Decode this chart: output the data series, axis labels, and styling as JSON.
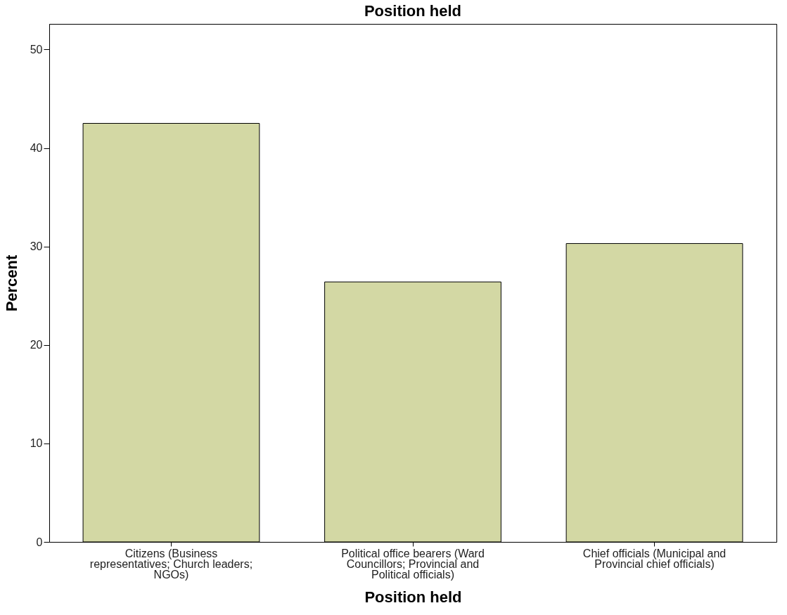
{
  "chart_data": {
    "type": "bar",
    "title": "Position held",
    "xlabel": "Position held",
    "ylabel": "Percent",
    "categories": [
      "Citizens (Business representatives; Church leaders; NGOs)",
      "Political office bearers (Ward Councillors; Provincial and Political officials)",
      "Chief officials (Municipal and Provincial chief officials)"
    ],
    "values": [
      42.5,
      26.4,
      30.3
    ],
    "color": "#d3d8a4",
    "ylim": [
      0,
      52.6
    ],
    "yticks": [
      0,
      10,
      20,
      30,
      40,
      50
    ],
    "grid": false
  }
}
